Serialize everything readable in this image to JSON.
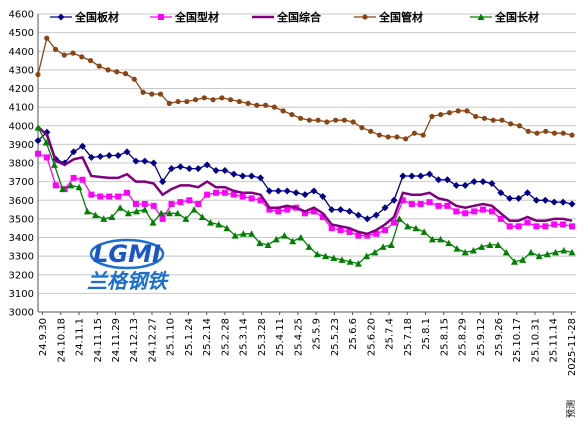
{
  "chart_data": {
    "type": "line",
    "title": "",
    "xlabel": "",
    "ylabel": "",
    "ylim": [
      3000,
      4600
    ],
    "yticks": [
      3000,
      3100,
      3200,
      3300,
      3400,
      3500,
      3600,
      3700,
      3800,
      3900,
      4000,
      4100,
      4200,
      4300,
      4400,
      4500,
      4600
    ],
    "grid": true,
    "legend_position": "top",
    "x_tick_labels": [
      "24.9.30",
      "24.10.18",
      "24.11.1",
      "24.11.15",
      "24.11.29",
      "24.12.13",
      "24.12.27",
      "25.1.10",
      "25.1.24",
      "25.2.14",
      "25.2.28",
      "25.3.14",
      "25.3.28",
      "25.4.11",
      "25.4.25",
      "25.5.9",
      "25.5.23",
      "25.6.6",
      "25.6.20",
      "25.7.4",
      "25.7.18",
      "25.8.1",
      "25.8.15",
      "25.8.29",
      "25.9.12",
      "25.9.26",
      "25.10.17",
      "25.10.31",
      "25.11.14",
      "2025-11-28"
    ],
    "annotation": "预测",
    "series": [
      {
        "name": "全国板材",
        "color": "#00008B",
        "marker": "diamond",
        "values": [
          3920,
          3965,
          3820,
          3800,
          3860,
          3890,
          3830,
          3835,
          3840,
          3840,
          3860,
          3810,
          3810,
          3800,
          3700,
          3770,
          3780,
          3770,
          3770,
          3790,
          3760,
          3760,
          3740,
          3730,
          3730,
          3720,
          3650,
          3650,
          3650,
          3640,
          3630,
          3650,
          3620,
          3550,
          3550,
          3540,
          3520,
          3500,
          3520,
          3560,
          3600,
          3730,
          3730,
          3730,
          3740,
          3710,
          3710,
          3680,
          3680,
          3700,
          3700,
          3690,
          3640,
          3610,
          3610,
          3640,
          3600,
          3600,
          3590,
          3590,
          3580
        ]
      },
      {
        "name": "全国型材",
        "color": "#FF00FF",
        "marker": "square",
        "values": [
          3850,
          3830,
          3680,
          3660,
          3720,
          3710,
          3630,
          3620,
          3620,
          3620,
          3640,
          3580,
          3580,
          3570,
          3500,
          3580,
          3590,
          3600,
          3580,
          3630,
          3640,
          3640,
          3630,
          3620,
          3610,
          3600,
          3550,
          3540,
          3550,
          3560,
          3530,
          3540,
          3510,
          3450,
          3440,
          3430,
          3410,
          3410,
          3420,
          3440,
          3480,
          3600,
          3580,
          3580,
          3590,
          3570,
          3570,
          3540,
          3530,
          3540,
          3550,
          3540,
          3500,
          3460,
          3460,
          3480,
          3460,
          3460,
          3470,
          3470,
          3460
        ]
      },
      {
        "name": "全国综合",
        "color": "#800080",
        "marker": "none",
        "values": [
          3995,
          3950,
          3810,
          3790,
          3820,
          3830,
          3730,
          3725,
          3720,
          3720,
          3740,
          3700,
          3700,
          3690,
          3630,
          3660,
          3680,
          3680,
          3670,
          3700,
          3670,
          3670,
          3650,
          3640,
          3640,
          3630,
          3560,
          3560,
          3570,
          3560,
          3540,
          3560,
          3530,
          3470,
          3460,
          3450,
          3430,
          3420,
          3440,
          3470,
          3510,
          3640,
          3630,
          3630,
          3640,
          3610,
          3600,
          3570,
          3560,
          3570,
          3580,
          3570,
          3530,
          3490,
          3490,
          3510,
          3490,
          3490,
          3500,
          3500,
          3490
        ]
      },
      {
        "name": "全国管材",
        "color": "#8B4513",
        "marker": "circle",
        "values": [
          4275,
          4470,
          4410,
          4380,
          4390,
          4370,
          4350,
          4320,
          4300,
          4290,
          4280,
          4250,
          4180,
          4170,
          4170,
          4120,
          4130,
          4130,
          4140,
          4150,
          4140,
          4150,
          4140,
          4130,
          4120,
          4110,
          4110,
          4100,
          4080,
          4060,
          4040,
          4030,
          4030,
          4020,
          4030,
          4030,
          4020,
          3990,
          3970,
          3950,
          3940,
          3940,
          3930,
          3960,
          3950,
          4050,
          4060,
          4070,
          4080,
          4080,
          4050,
          4040,
          4030,
          4030,
          4010,
          4000,
          3970,
          3960,
          3970,
          3960,
          3960,
          3950
        ]
      },
      {
        "name": "全国长材",
        "color": "#008000",
        "marker": "triangle",
        "values": [
          3990,
          3910,
          3790,
          3660,
          3680,
          3670,
          3540,
          3520,
          3500,
          3510,
          3560,
          3530,
          3540,
          3550,
          3480,
          3530,
          3530,
          3530,
          3500,
          3550,
          3510,
          3480,
          3470,
          3450,
          3410,
          3420,
          3420,
          3370,
          3360,
          3390,
          3410,
          3380,
          3400,
          3350,
          3310,
          3300,
          3290,
          3280,
          3270,
          3260,
          3300,
          3320,
          3350,
          3360,
          3500,
          3460,
          3450,
          3430,
          3390,
          3390,
          3370,
          3340,
          3320,
          3330,
          3350,
          3360,
          3360,
          3320,
          3270,
          3280,
          3320,
          3300,
          3310,
          3320,
          3330,
          3320
        ]
      }
    ]
  },
  "logo": {
    "mark": "LGMI",
    "name": "兰格钢铁"
  }
}
